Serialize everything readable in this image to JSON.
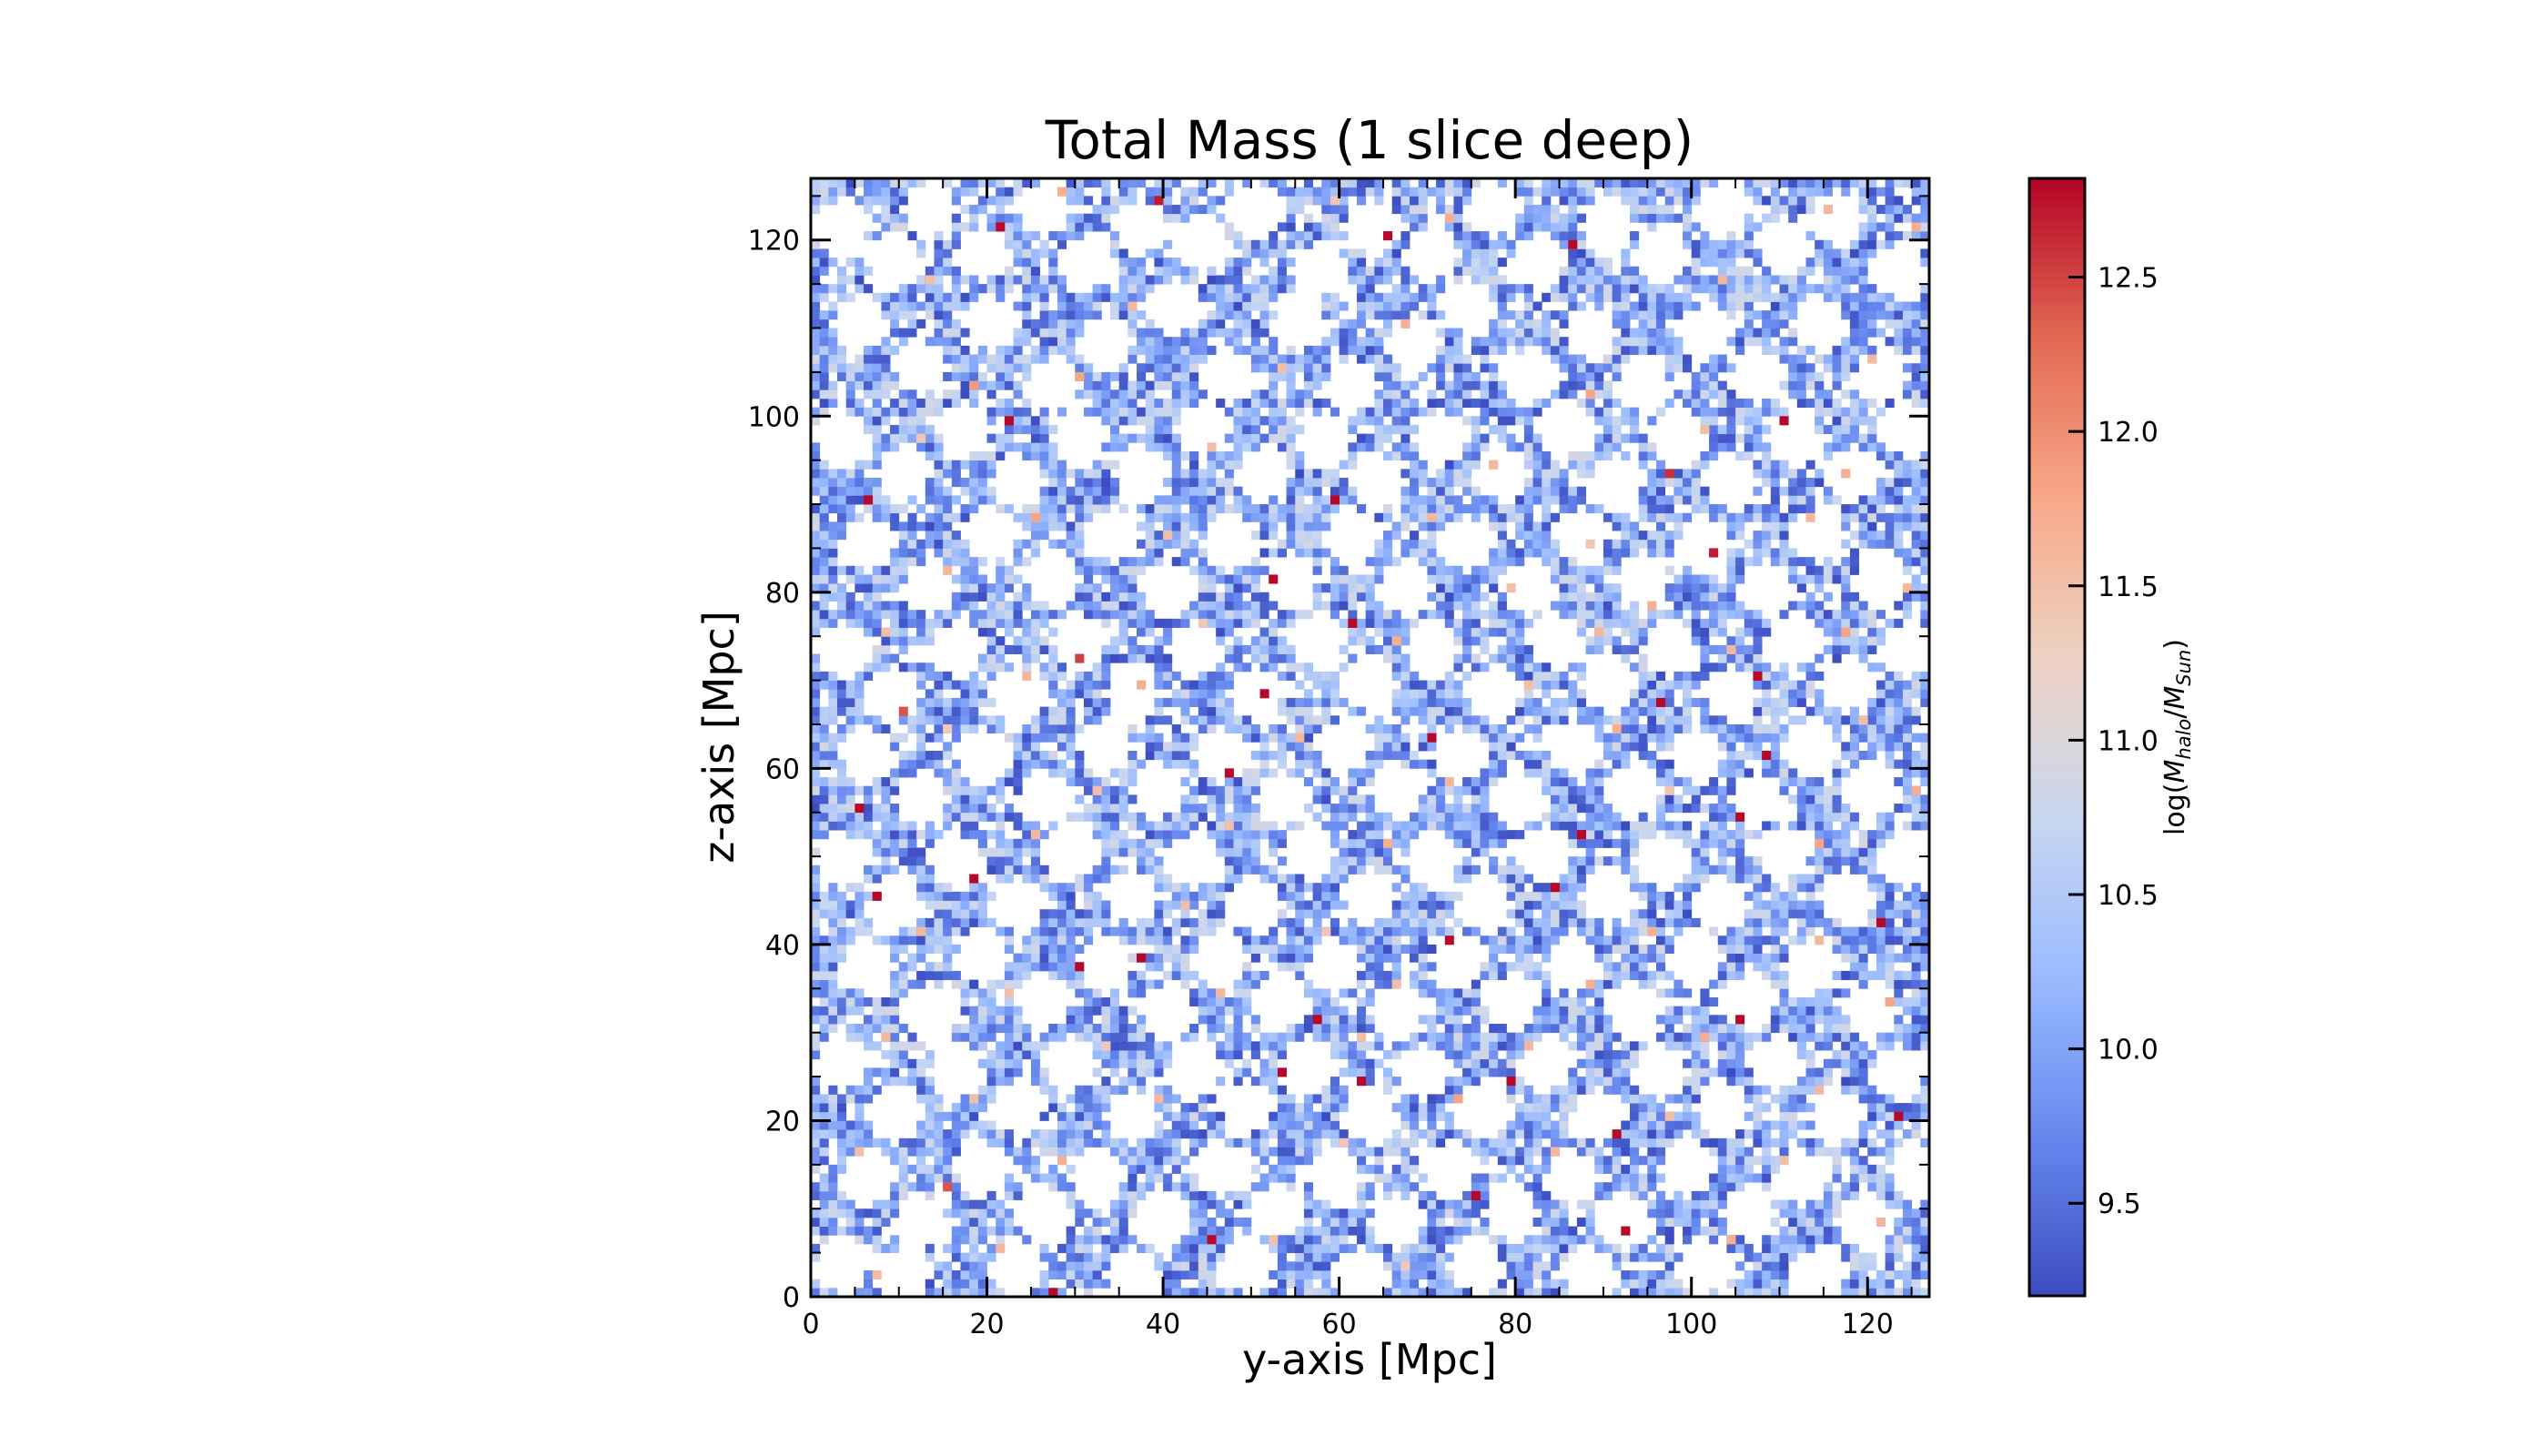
{
  "chart_data": {
    "type": "heatmap",
    "title": "Total Mass (1 slice deep)",
    "xlabel": "y-axis [Mpc]",
    "ylabel": "z-axis [Mpc]",
    "xlim": [
      0,
      127
    ],
    "ylim": [
      0,
      127
    ],
    "grid_size": 127,
    "grid": false,
    "x_ticks": [
      0,
      20,
      40,
      60,
      80,
      100,
      120
    ],
    "y_ticks": [
      0,
      20,
      40,
      60,
      80,
      100,
      120
    ],
    "colormap": "coolwarm",
    "colormap_colors": [
      "#3b4cc0",
      "#6788ee",
      "#9abbff",
      "#c9d7f0",
      "#edd1c2",
      "#f7a889",
      "#e26952",
      "#b40426"
    ],
    "colorbar": {
      "label": "log(M_halo/M_Sun)",
      "label_main": "log(",
      "label_m1": "M",
      "label_sub1": "halo",
      "label_slash": "/",
      "label_m2": "M",
      "label_sub2": "Sun",
      "label_close": ")",
      "range": [
        9.2,
        12.82
      ],
      "ticks": [
        9.5,
        10.0,
        10.5,
        11.0,
        11.5,
        12.0,
        12.5
      ],
      "tick_labels": [
        "9.5",
        "10.0",
        "10.5",
        "11.0",
        "11.5",
        "12.0",
        "12.5"
      ]
    },
    "background_value_range": [
      9.2,
      10.9
    ],
    "empty_color": "#ffffff",
    "voids": [
      [
        3,
        121,
        3
      ],
      [
        9,
        117,
        3
      ],
      [
        13,
        123,
        3
      ],
      [
        19,
        118,
        3
      ],
      [
        26,
        123,
        3
      ],
      [
        31,
        117,
        3
      ],
      [
        37,
        121,
        3
      ],
      [
        44,
        119,
        3
      ],
      [
        50,
        123,
        3
      ],
      [
        57,
        116,
        3
      ],
      [
        63,
        121,
        3
      ],
      [
        70,
        118,
        3
      ],
      [
        77,
        123,
        3
      ],
      [
        82,
        117,
        3
      ],
      [
        90,
        121,
        3
      ],
      [
        96,
        118,
        3
      ],
      [
        103,
        123,
        3
      ],
      [
        110,
        119,
        3
      ],
      [
        116,
        122,
        3
      ],
      [
        123,
        116,
        3
      ],
      [
        5,
        110,
        3
      ],
      [
        12,
        105,
        3
      ],
      [
        20,
        110,
        3
      ],
      [
        27,
        103,
        3
      ],
      [
        33,
        108,
        3
      ],
      [
        41,
        112,
        3
      ],
      [
        47,
        104,
        3
      ],
      [
        55,
        110,
        3
      ],
      [
        61,
        103,
        3
      ],
      [
        68,
        108,
        3
      ],
      [
        74,
        112,
        3
      ],
      [
        81,
        104,
        3
      ],
      [
        88,
        109,
        3
      ],
      [
        94,
        103,
        3
      ],
      [
        101,
        109,
        3
      ],
      [
        107,
        104,
        3
      ],
      [
        114,
        110,
        3
      ],
      [
        121,
        104,
        3
      ],
      [
        3,
        97,
        3
      ],
      [
        10,
        93,
        3
      ],
      [
        17,
        98,
        3
      ],
      [
        23,
        92,
        3
      ],
      [
        30,
        97,
        3
      ],
      [
        37,
        93,
        3
      ],
      [
        44,
        98,
        3
      ],
      [
        51,
        93,
        3
      ],
      [
        58,
        97,
        3
      ],
      [
        64,
        92,
        3
      ],
      [
        71,
        97,
        3
      ],
      [
        78,
        93,
        3
      ],
      [
        85,
        98,
        3
      ],
      [
        91,
        92,
        3
      ],
      [
        98,
        97,
        3
      ],
      [
        104,
        92,
        3
      ],
      [
        111,
        97,
        3
      ],
      [
        118,
        93,
        3
      ],
      [
        124,
        98,
        3
      ],
      [
        6,
        85,
        3
      ],
      [
        13,
        80,
        3
      ],
      [
        20,
        86,
        3
      ],
      [
        27,
        81,
        3
      ],
      [
        34,
        86,
        3
      ],
      [
        40,
        80,
        3
      ],
      [
        47,
        85,
        3
      ],
      [
        54,
        81,
        3
      ],
      [
        61,
        86,
        3
      ],
      [
        67,
        80,
        3
      ],
      [
        74,
        85,
        3
      ],
      [
        81,
        80,
        3
      ],
      [
        87,
        86,
        3
      ],
      [
        94,
        81,
        3
      ],
      [
        101,
        85,
        3
      ],
      [
        108,
        80,
        3
      ],
      [
        114,
        86,
        3
      ],
      [
        121,
        81,
        3
      ],
      [
        3,
        73,
        3
      ],
      [
        9,
        68,
        3
      ],
      [
        16,
        73,
        3
      ],
      [
        23,
        68,
        3
      ],
      [
        30,
        74,
        3
      ],
      [
        36,
        68,
        3
      ],
      [
        43,
        73,
        3
      ],
      [
        50,
        68,
        3
      ],
      [
        57,
        74,
        3
      ],
      [
        63,
        69,
        3
      ],
      [
        70,
        73,
        3
      ],
      [
        77,
        68,
        3
      ],
      [
        84,
        74,
        3
      ],
      [
        90,
        69,
        3
      ],
      [
        97,
        73,
        3
      ],
      [
        104,
        68,
        3
      ],
      [
        111,
        74,
        3
      ],
      [
        117,
        69,
        3
      ],
      [
        124,
        73,
        3
      ],
      [
        6,
        61,
        3
      ],
      [
        12,
        56,
        3
      ],
      [
        19,
        61,
        3
      ],
      [
        26,
        56,
        3
      ],
      [
        33,
        62,
        3
      ],
      [
        39,
        57,
        3
      ],
      [
        46,
        61,
        3
      ],
      [
        53,
        56,
        3
      ],
      [
        60,
        62,
        3
      ],
      [
        66,
        57,
        3
      ],
      [
        73,
        61,
        3
      ],
      [
        80,
        56,
        3
      ],
      [
        86,
        62,
        3
      ],
      [
        93,
        57,
        3
      ],
      [
        100,
        61,
        3
      ],
      [
        107,
        56,
        3
      ],
      [
        113,
        62,
        3
      ],
      [
        120,
        57,
        3
      ],
      [
        3,
        49,
        3
      ],
      [
        9,
        44,
        3
      ],
      [
        16,
        49,
        3
      ],
      [
        23,
        44,
        3
      ],
      [
        29,
        50,
        3
      ],
      [
        36,
        45,
        3
      ],
      [
        43,
        49,
        3
      ],
      [
        50,
        44,
        3
      ],
      [
        56,
        50,
        3
      ],
      [
        63,
        45,
        3
      ],
      [
        70,
        49,
        3
      ],
      [
        76,
        44,
        3
      ],
      [
        83,
        50,
        3
      ],
      [
        90,
        45,
        3
      ],
      [
        96,
        49,
        3
      ],
      [
        103,
        44,
        3
      ],
      [
        110,
        50,
        3
      ],
      [
        117,
        45,
        3
      ],
      [
        124,
        49,
        3
      ],
      [
        6,
        37,
        3
      ],
      [
        13,
        32,
        3
      ],
      [
        19,
        38,
        3
      ],
      [
        26,
        33,
        3
      ],
      [
        33,
        37,
        3
      ],
      [
        40,
        32,
        3
      ],
      [
        46,
        38,
        3
      ],
      [
        53,
        33,
        3
      ],
      [
        59,
        37,
        3
      ],
      [
        66,
        32,
        3
      ],
      [
        73,
        38,
        3
      ],
      [
        79,
        33,
        3
      ],
      [
        86,
        37,
        3
      ],
      [
        93,
        32,
        3
      ],
      [
        100,
        38,
        3
      ],
      [
        106,
        33,
        3
      ],
      [
        113,
        37,
        3
      ],
      [
        120,
        32,
        3
      ],
      [
        3,
        26,
        3
      ],
      [
        9,
        20,
        3
      ],
      [
        16,
        25,
        3
      ],
      [
        23,
        21,
        3
      ],
      [
        29,
        26,
        3
      ],
      [
        36,
        20,
        3
      ],
      [
        43,
        25,
        3
      ],
      [
        49,
        21,
        3
      ],
      [
        56,
        26,
        3
      ],
      [
        63,
        20,
        3
      ],
      [
        69,
        25,
        3
      ],
      [
        76,
        21,
        3
      ],
      [
        83,
        26,
        3
      ],
      [
        89,
        20,
        3
      ],
      [
        96,
        25,
        3
      ],
      [
        103,
        21,
        3
      ],
      [
        109,
        26,
        3
      ],
      [
        116,
        20,
        3
      ],
      [
        123,
        25,
        3
      ],
      [
        6,
        13,
        3
      ],
      [
        12,
        8,
        3
      ],
      [
        19,
        14,
        3
      ],
      [
        26,
        9,
        3
      ],
      [
        32,
        13,
        3
      ],
      [
        39,
        8,
        3
      ],
      [
        46,
        14,
        3
      ],
      [
        52,
        9,
        3
      ],
      [
        59,
        13,
        3
      ],
      [
        66,
        8,
        3
      ],
      [
        72,
        14,
        3
      ],
      [
        79,
        9,
        3
      ],
      [
        86,
        13,
        3
      ],
      [
        92,
        8,
        3
      ],
      [
        99,
        14,
        3
      ],
      [
        106,
        9,
        3
      ],
      [
        112,
        13,
        3
      ],
      [
        119,
        8,
        3
      ],
      [
        125,
        14,
        3
      ],
      [
        3,
        3,
        3
      ],
      [
        10,
        2,
        3
      ],
      [
        23,
        3,
        3
      ],
      [
        36,
        2,
        3
      ],
      [
        49,
        3,
        3
      ],
      [
        62,
        2,
        3
      ],
      [
        75,
        3,
        3
      ],
      [
        88,
        2,
        3
      ],
      [
        101,
        3,
        3
      ],
      [
        114,
        2,
        3
      ]
    ],
    "massive_halos": [
      [
        21,
        121,
        12.8
      ],
      [
        39,
        124,
        12.7
      ],
      [
        65,
        120,
        12.8
      ],
      [
        86,
        119,
        12.8
      ],
      [
        22,
        99,
        12.8
      ],
      [
        110,
        99,
        12.8
      ],
      [
        6,
        90,
        12.8
      ],
      [
        59,
        90,
        12.8
      ],
      [
        97,
        93,
        12.6
      ],
      [
        52,
        81,
        12.8
      ],
      [
        61,
        76,
        12.8
      ],
      [
        102,
        84,
        12.7
      ],
      [
        30,
        72,
        12.5
      ],
      [
        51,
        68,
        12.8
      ],
      [
        10,
        66,
        12.4
      ],
      [
        70,
        63,
        12.8
      ],
      [
        96,
        67,
        12.8
      ],
      [
        107,
        70,
        12.8
      ],
      [
        47,
        59,
        12.8
      ],
      [
        108,
        61,
        12.8
      ],
      [
        5,
        55,
        12.8
      ],
      [
        87,
        52,
        12.8
      ],
      [
        105,
        54,
        12.8
      ],
      [
        7,
        45,
        12.8
      ],
      [
        18,
        47,
        12.8
      ],
      [
        84,
        46,
        12.8
      ],
      [
        72,
        40,
        12.8
      ],
      [
        37,
        38,
        12.8
      ],
      [
        30,
        37,
        12.8
      ],
      [
        121,
        42,
        12.8
      ],
      [
        57,
        31,
        12.8
      ],
      [
        105,
        31,
        12.8
      ],
      [
        53,
        25,
        12.8
      ],
      [
        62,
        24,
        12.8
      ],
      [
        79,
        24,
        12.8
      ],
      [
        123,
        20,
        12.8
      ],
      [
        91,
        18,
        12.8
      ],
      [
        15,
        12,
        12.4
      ],
      [
        45,
        6,
        12.8
      ],
      [
        75,
        11,
        12.8
      ],
      [
        92,
        7,
        12.8
      ],
      [
        27,
        0,
        12.8
      ]
    ],
    "intermediate_halos": [
      [
        28,
        125,
        11.7
      ],
      [
        59,
        124,
        11.4
      ],
      [
        72,
        122,
        11.7
      ],
      [
        115,
        123,
        11.6
      ],
      [
        125,
        121,
        11.7
      ],
      [
        13,
        115,
        11.5
      ],
      [
        36,
        112,
        11.6
      ],
      [
        67,
        110,
        11.7
      ],
      [
        103,
        115,
        11.6
      ],
      [
        30,
        104,
        11.8
      ],
      [
        18,
        103,
        11.9
      ],
      [
        53,
        105,
        11.5
      ],
      [
        88,
        102,
        11.8
      ],
      [
        120,
        106,
        11.6
      ],
      [
        12,
        97,
        11.4
      ],
      [
        45,
        96,
        11.5
      ],
      [
        77,
        94,
        11.6
      ],
      [
        101,
        98,
        11.5
      ],
      [
        117,
        93,
        11.7
      ],
      [
        25,
        88,
        11.8
      ],
      [
        70,
        88,
        11.6
      ],
      [
        88,
        85,
        11.4
      ],
      [
        113,
        88,
        11.6
      ],
      [
        40,
        86,
        11.5
      ],
      [
        15,
        82,
        11.6
      ],
      [
        79,
        80,
        11.5
      ],
      [
        95,
        78,
        11.7
      ],
      [
        124,
        80,
        11.6
      ],
      [
        8,
        75,
        11.5
      ],
      [
        44,
        76,
        11.4
      ],
      [
        66,
        74,
        11.7
      ],
      [
        89,
        75,
        11.6
      ],
      [
        117,
        75,
        11.8
      ],
      [
        24,
        70,
        11.6
      ],
      [
        37,
        69,
        11.7
      ],
      [
        81,
        69,
        11.5
      ],
      [
        104,
        73,
        11.6
      ],
      [
        15,
        64,
        11.4
      ],
      [
        55,
        63,
        11.6
      ],
      [
        91,
        64,
        11.7
      ],
      [
        119,
        65,
        11.5
      ],
      [
        32,
        57,
        11.5
      ],
      [
        72,
        58,
        11.6
      ],
      [
        97,
        57,
        11.4
      ],
      [
        125,
        57,
        11.7
      ],
      [
        25,
        52,
        11.6
      ],
      [
        47,
        53,
        11.5
      ],
      [
        65,
        51,
        11.7
      ],
      [
        114,
        51,
        11.8
      ],
      [
        12,
        41,
        11.6
      ],
      [
        42,
        44,
        11.5
      ],
      [
        58,
        41,
        11.4
      ],
      [
        95,
        41,
        11.7
      ],
      [
        114,
        40,
        11.6
      ],
      [
        22,
        34,
        11.5
      ],
      [
        46,
        34,
        11.6
      ],
      [
        66,
        35,
        11.5
      ],
      [
        88,
        35,
        11.7
      ],
      [
        122,
        33,
        11.8
      ],
      [
        8,
        29,
        11.6
      ],
      [
        33,
        28,
        11.4
      ],
      [
        62,
        29,
        11.5
      ],
      [
        81,
        28,
        11.6
      ],
      [
        101,
        29,
        11.7
      ],
      [
        18,
        22,
        11.5
      ],
      [
        39,
        22,
        11.6
      ],
      [
        73,
        22,
        11.8
      ],
      [
        97,
        20,
        11.5
      ],
      [
        114,
        23,
        11.6
      ],
      [
        5,
        16,
        11.5
      ],
      [
        28,
        15,
        11.7
      ],
      [
        60,
        17,
        11.4
      ],
      [
        84,
        16,
        11.6
      ],
      [
        110,
        15,
        11.5
      ],
      [
        21,
        5,
        11.6
      ],
      [
        52,
        6,
        11.5
      ],
      [
        67,
        3,
        11.4
      ],
      [
        104,
        6,
        11.7
      ],
      [
        121,
        8,
        11.6
      ],
      [
        7,
        2,
        11.5
      ]
    ]
  }
}
